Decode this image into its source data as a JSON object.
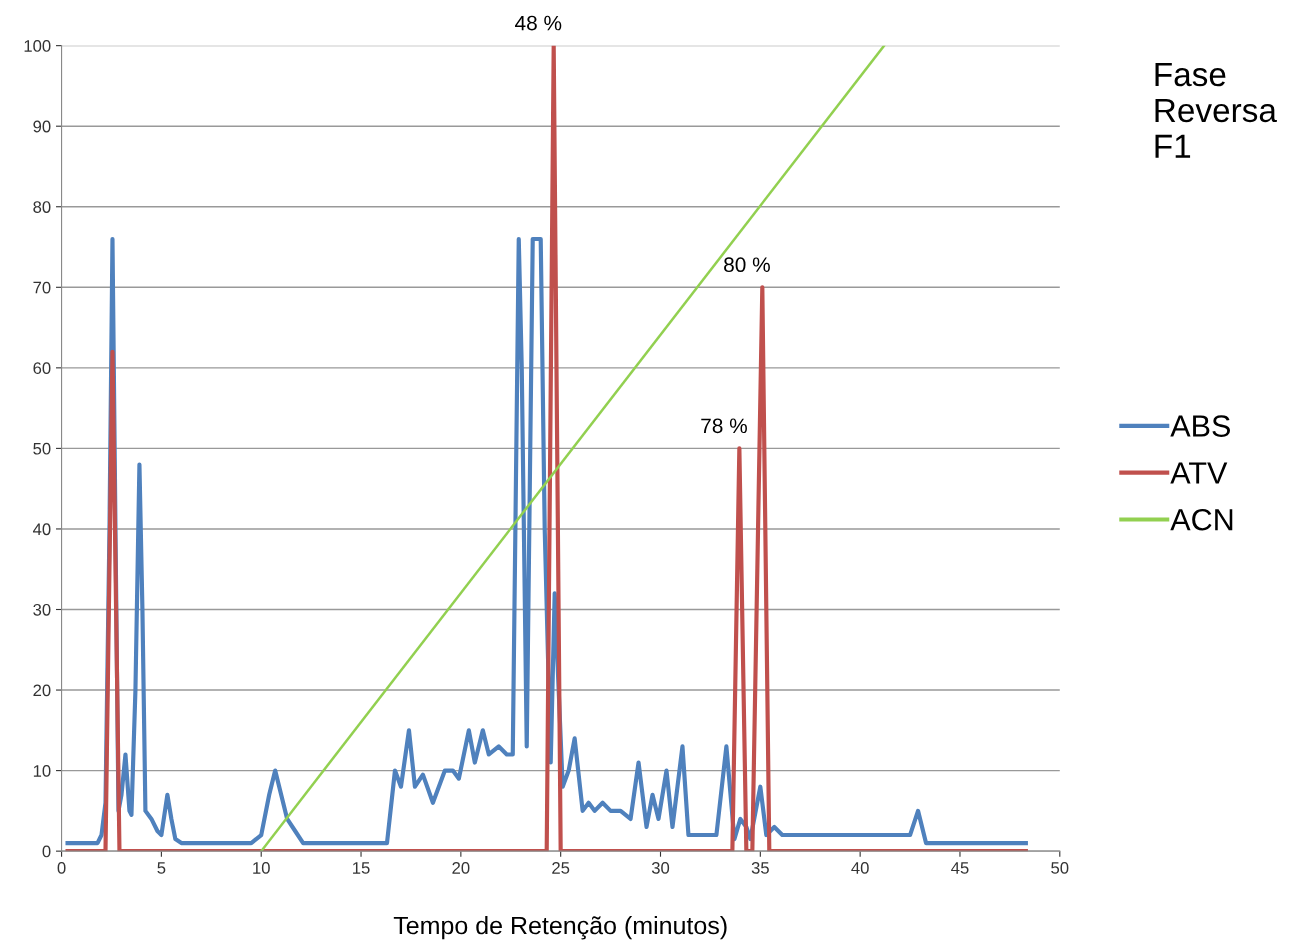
{
  "chart_data": {
    "type": "line",
    "title": "Fase Reversa F1",
    "xlabel": "Tempo de Retenção (minutos)",
    "xlim": [
      0,
      50
    ],
    "xticks": [
      0,
      5,
      10,
      15,
      20,
      25,
      30,
      35,
      40,
      45,
      50
    ],
    "ylim": [
      0,
      100
    ],
    "yticks": [
      0,
      10,
      20,
      30,
      40,
      50,
      60,
      70,
      80,
      90,
      100
    ],
    "grid": "y",
    "legend": "right",
    "marker": "none",
    "line_style": "solid",
    "annotations": [
      {
        "text": "48 %",
        "x": 24.65,
        "y": 100
      },
      {
        "text": "78 %",
        "x": 33.95,
        "y": 50
      },
      {
        "text": "80 %",
        "x": 35.1,
        "y": 70
      }
    ],
    "series": [
      {
        "name": "ABS",
        "color": "#4f81bd",
        "x": [
          0.3,
          1.8,
          2.0,
          2.2,
          2.4,
          2.55,
          2.7,
          2.85,
          3.0,
          3.2,
          3.4,
          3.5,
          3.7,
          3.9,
          4.05,
          4.2,
          4.5,
          4.8,
          5.0,
          5.3,
          5.5,
          5.7,
          6.0,
          9.5,
          10.0,
          10.4,
          10.7,
          11.0,
          11.3,
          11.7,
          12.1,
          16.3,
          16.7,
          17.0,
          17.4,
          17.7,
          18.1,
          18.6,
          19.2,
          19.6,
          19.9,
          20.4,
          20.7,
          21.1,
          21.4,
          21.9,
          22.3,
          22.6,
          22.9,
          23.05,
          23.3,
          23.6,
          24.0,
          24.2,
          24.5,
          24.7,
          24.9,
          25.1,
          25.4,
          25.7,
          26.1,
          26.4,
          26.7,
          27.1,
          27.5,
          28.0,
          28.5,
          28.9,
          29.3,
          29.6,
          29.9,
          30.3,
          30.6,
          31.1,
          31.4,
          32.8,
          33.3,
          33.7,
          34.0,
          34.3,
          34.5,
          35.0,
          35.3,
          35.7,
          36.1,
          42.5,
          42.9,
          43.3,
          48.3
        ],
        "values": [
          1,
          1,
          2,
          6,
          40,
          76,
          40,
          5,
          7,
          12,
          5,
          4.5,
          20,
          48,
          30,
          5,
          4,
          2.5,
          2,
          7,
          4,
          1.5,
          1,
          1,
          2,
          7,
          10,
          7,
          4,
          2.5,
          1,
          1,
          10,
          8,
          15,
          8,
          9.5,
          6,
          10,
          10,
          9,
          15,
          11,
          15,
          12,
          13,
          12,
          12,
          76,
          60,
          13,
          76,
          76,
          40,
          11,
          32,
          20,
          8,
          10,
          14,
          5,
          6,
          5,
          6,
          5,
          5,
          4,
          11,
          3,
          7,
          4,
          10,
          3,
          13,
          2,
          2,
          13,
          1.5,
          4,
          3,
          1.5,
          8,
          2,
          3,
          2,
          2,
          5,
          1,
          1
        ]
      },
      {
        "name": "ATV",
        "color": "#c0504d",
        "x": [
          0.3,
          2.2,
          2.55,
          2.9,
          24.3,
          24.65,
          25.0,
          33.6,
          33.95,
          34.3,
          34.6,
          35.1,
          35.45,
          48.3
        ],
        "values": [
          0,
          0,
          62,
          0,
          0,
          100,
          0,
          0,
          50,
          0,
          0,
          70,
          0,
          0
        ]
      },
      {
        "name": "ACN",
        "color": "#92d050",
        "x": [
          10,
          41.2
        ],
        "values": [
          0,
          100
        ]
      }
    ]
  }
}
